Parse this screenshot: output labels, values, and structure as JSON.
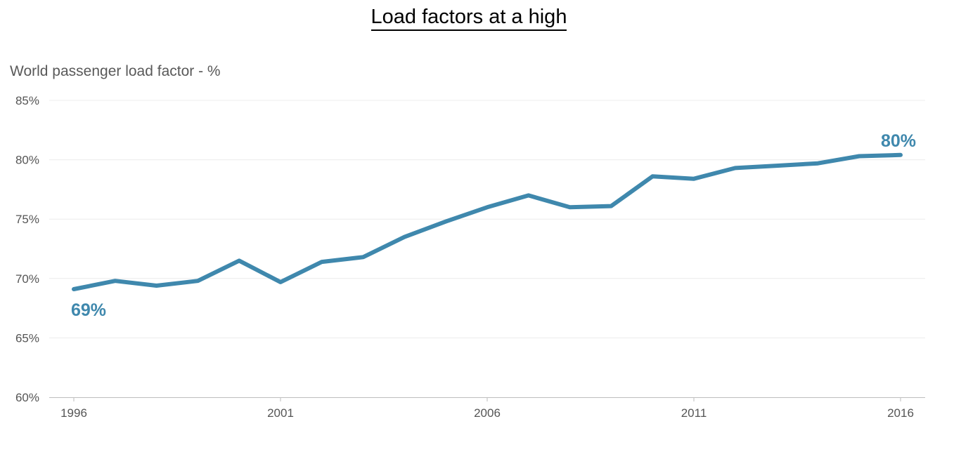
{
  "chart_data": {
    "type": "line",
    "title": "Load factors at a high",
    "ylabel": "World passenger load factor - %",
    "xlabel": "",
    "x": [
      1996,
      1997,
      1998,
      1999,
      2000,
      2001,
      2002,
      2003,
      2004,
      2005,
      2006,
      2007,
      2008,
      2009,
      2010,
      2011,
      2012,
      2013,
      2014,
      2015,
      2016
    ],
    "series": [
      {
        "values": [
          69.1,
          69.8,
          69.4,
          69.8,
          71.5,
          69.7,
          71.4,
          71.8,
          73.5,
          74.8,
          76.0,
          77.0,
          76.0,
          76.1,
          78.6,
          78.4,
          79.3,
          79.5,
          79.7,
          80.3,
          80.4
        ]
      }
    ],
    "ylim": [
      60,
      85
    ],
    "yticks": [
      60,
      65,
      70,
      75,
      80,
      85
    ],
    "ytick_labels": [
      "60%",
      "65%",
      "70%",
      "75%",
      "80%",
      "85%"
    ],
    "xticks": [
      1996,
      2001,
      2006,
      2011,
      2016
    ],
    "xtick_labels": [
      "1996",
      "2001",
      "2006",
      "2011",
      "2016"
    ],
    "annotations": [
      {
        "x": 1996,
        "y": 69.1,
        "text": "69%",
        "position": "below"
      },
      {
        "x": 2016,
        "y": 80.4,
        "text": "80%",
        "position": "above"
      }
    ],
    "grid": true,
    "legend": "none",
    "line_color": "#3f88ad"
  }
}
